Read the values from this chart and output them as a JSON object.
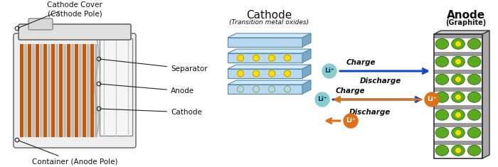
{
  "bg_color": "#ffffff",
  "fig_width": 7.0,
  "fig_height": 2.35,
  "dpi": 100,
  "left_labels": {
    "cathode_cover": "Cathode Cover",
    "cathode_pole": "(Cathode Pole)",
    "separator": "Separator",
    "anode": "Anode",
    "cathode": "Cathode",
    "container": "Container (Anode Pole)"
  },
  "right_labels": {
    "cathode_title": "Cathode",
    "cathode_sub": "(Transition metal oxides)",
    "anode_title": "Anode",
    "anode_sub": "(Graphite)",
    "charge1": "Charge",
    "discharge1": "Discharge",
    "charge2": "Charge",
    "discharge2": "Discharge"
  },
  "colors": {
    "cathode_layer_face": "#b8d8f0",
    "cathode_layer_top": "#d0eafc",
    "cathode_layer_side": "#7aaac8",
    "cathode_layer_edge": "#5588aa",
    "anode_green": "#5aaa20",
    "anode_green_edge": "#336611",
    "anode_gray": "#999999",
    "anode_gray_dark": "#666666",
    "arrow_blue": "#1144cc",
    "arrow_orange": "#e07018",
    "li_circle_blue": "#88cccc",
    "li_circle_orange": "#e07018",
    "dot_yellow": "#ffdd00",
    "dot_edge": "#998800",
    "battery_orange": "#cc5500",
    "battery_gray": "#bbbbbb",
    "text_dark": "#111111",
    "annot_line": "#222222"
  }
}
